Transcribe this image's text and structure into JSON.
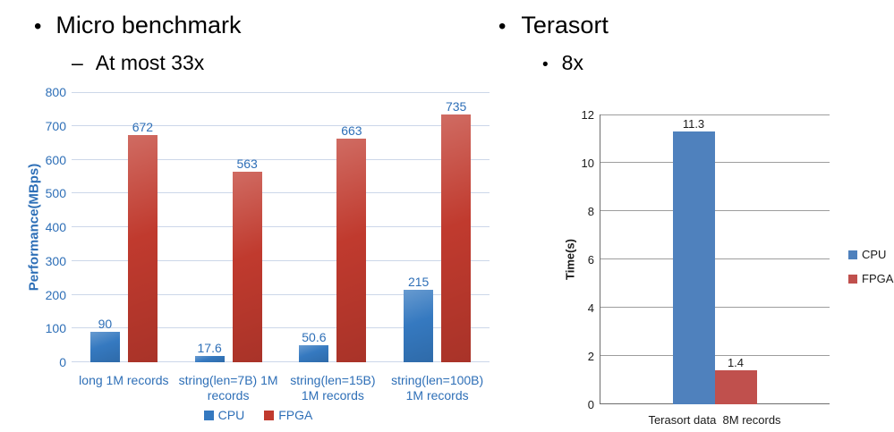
{
  "slide": {
    "left": {
      "marker": "•",
      "title": "Micro benchmark",
      "sub_marker": "–",
      "subtitle": "At most 33x"
    },
    "right": {
      "marker": "•",
      "title": "Terasort",
      "sub_marker": "•",
      "subtitle": "8x"
    }
  },
  "chart_data": [
    {
      "type": "bar",
      "title": "",
      "categories": [
        "long 1M records",
        "string(len=7B) 1M records",
        "string(len=15B) 1M records",
        "string(len=100B) 1M records"
      ],
      "series": [
        {
          "name": "CPU",
          "color": "#3579c0",
          "values": [
            90,
            17.6,
            50.6,
            215
          ]
        },
        {
          "name": "FPGA",
          "color": "#c03a2e",
          "values": [
            672,
            563,
            663,
            735
          ]
        }
      ],
      "xlabel": "",
      "ylabel": "Performance(MBps)",
      "ylim": [
        0,
        800
      ],
      "ytick_step": 100,
      "grid": true,
      "data_labels": true,
      "legend_position": "bottom",
      "text_color": "#2e6fb7",
      "gridline_color": "#ccd7e9"
    },
    {
      "type": "bar",
      "title": "",
      "categories": [
        "Terasort data  8M records"
      ],
      "series": [
        {
          "name": "CPU",
          "color": "#4f81bd",
          "values": [
            11.3
          ]
        },
        {
          "name": "FPGA",
          "color": "#c0504d",
          "values": [
            1.4
          ]
        }
      ],
      "xlabel": "",
      "ylabel": "Time(s)",
      "ylim": [
        0,
        12
      ],
      "ytick_step": 2,
      "grid": true,
      "data_labels": true,
      "legend_position": "right",
      "text_color": "#1a1a1a",
      "gridline_color": "#9d9d9d"
    }
  ]
}
